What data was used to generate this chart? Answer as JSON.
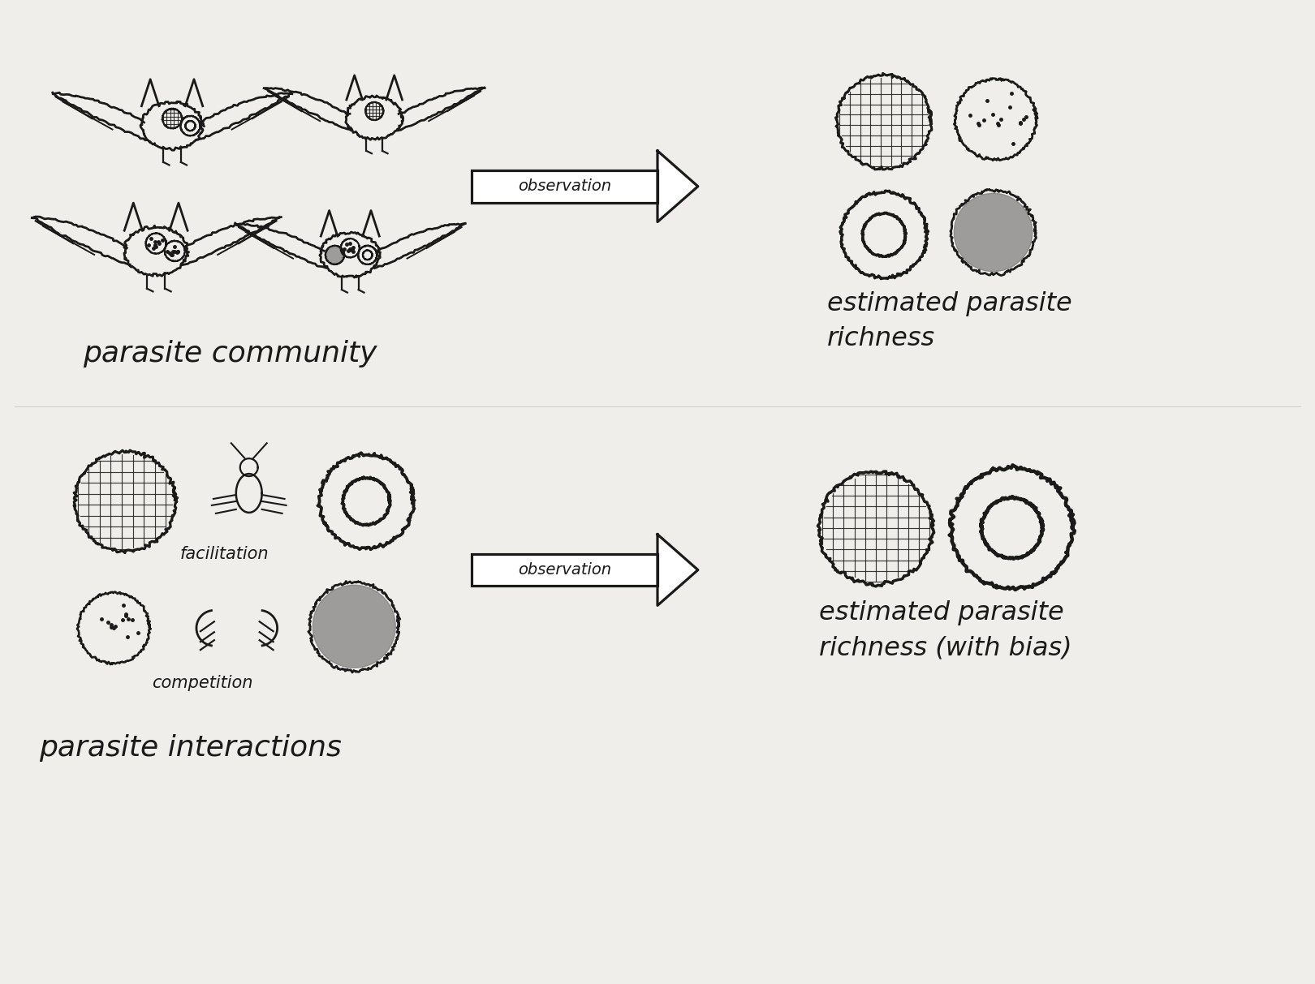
{
  "bg_color": "#f0eeeb",
  "font_color": "#1a1a1a",
  "sketch_color": "#1a1a1a",
  "top_label": "parasite community",
  "bottom_label_left": "parasite interactions",
  "top_right_label": "estimated parasite\nrichness",
  "bottom_right_label": "estimated parasite\nrichness (with bias)",
  "arrow_label_top": "observation",
  "arrow_label_bot": "observation",
  "lw_bat": 2.0,
  "lw_circle": 2.2
}
